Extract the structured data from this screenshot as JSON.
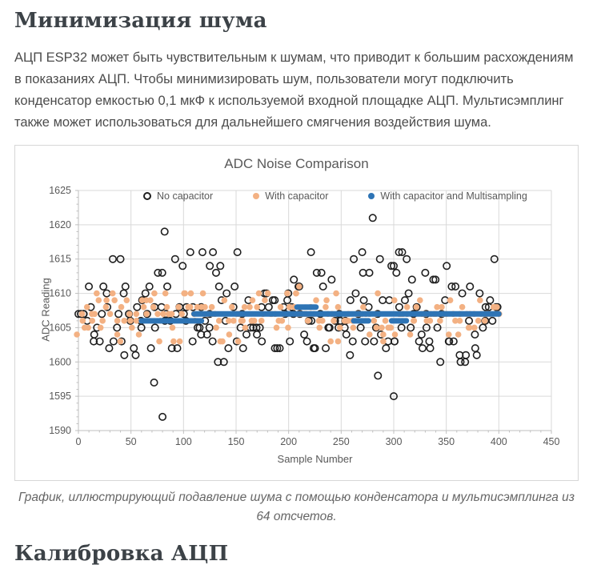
{
  "headings": {
    "noise_minimization": "Минимизация шума",
    "adc_calibration": "Калибровка АЦП"
  },
  "paragraph": "АЦП ESP32 может быть чувствительным к шумам, что приводит к большим расхождениям в показаниях АЦП. Чтобы минимизировать шум, пользователи могут подключить конденсатор емкостью 0,1 мкФ к используемой входной площадке АЦП. Мультисэмплинг также может использоваться для дальнейшего смягчения воздействия шума.",
  "caption": "График, иллюстрирующий подавление шума с помощью конденсатора и мультисэмплинга из 64 отсчетов.",
  "colors": {
    "heading": "#3c4247",
    "body_text": "#4c4c4c",
    "chart_text": "#595959",
    "grid": "#d9d9d9",
    "axis": "#bfbfbf",
    "series_no_capacitor": "#1f1f1f",
    "series_with_capacitor": "#f3b183",
    "series_multisampling": "#2e74b5"
  },
  "chart_data": {
    "type": "scatter",
    "title": "ADC Noise Comparison",
    "xlabel": "Sample Number",
    "ylabel": "ADC Reading",
    "xlim": [
      0,
      450
    ],
    "ylim": [
      1590,
      1625
    ],
    "xticks": [
      0,
      50,
      100,
      150,
      200,
      250,
      300,
      350,
      400,
      450
    ],
    "yticks": [
      1590,
      1595,
      1600,
      1605,
      1610,
      1615,
      1620,
      1625
    ],
    "x_minor_step": 10,
    "y_minor_step": 1,
    "grid": true,
    "legend_position": "top-inside",
    "series": [
      {
        "name": "No capacitor",
        "marker": "open-circle",
        "color": "#1f1f1f",
        "x_range": [
          0,
          400
        ],
        "x_step": 2,
        "seed": 11,
        "value_weights": {
          "1600": 2,
          "1601": 3,
          "1602": 8,
          "1603": 10,
          "1604": 8,
          "1605": 12,
          "1606": 12,
          "1607": 10,
          "1608": 8,
          "1609": 8,
          "1610": 8,
          "1611": 6,
          "1612": 3,
          "1613": 3,
          "1614": 2,
          "1615": 2,
          "1616": 2
        },
        "outliers": [
          [
            72,
            1597
          ],
          [
            80,
            1592
          ],
          [
            82,
            1619
          ],
          [
            280,
            1621
          ],
          [
            285,
            1598
          ],
          [
            300,
            1595
          ],
          [
            40,
            1615
          ],
          [
            92,
            1615
          ],
          [
            118,
            1616
          ],
          [
            128,
            1616
          ],
          [
            125,
            1614
          ],
          [
            135,
            1614
          ],
          [
            262,
            1615
          ],
          [
            270,
            1616
          ],
          [
            300,
            1614
          ],
          [
            305,
            1616
          ],
          [
            308,
            1616
          ],
          [
            330,
            1613
          ],
          [
            205,
            1612
          ]
        ]
      },
      {
        "name": "With capacitor",
        "marker": "filled-circle",
        "color": "#f3b183",
        "x_range": [
          0,
          400
        ],
        "x_step": 2,
        "seed": 7,
        "value_weights": {
          "1603": 3,
          "1604": 5,
          "1605": 18,
          "1606": 22,
          "1607": 24,
          "1608": 14,
          "1609": 10,
          "1610": 4
        },
        "outliers": [
          [
            210,
            1611
          ],
          [
            152,
            1603
          ],
          [
            240,
            1603
          ],
          [
            290,
            1603
          ]
        ]
      },
      {
        "name": "With capacitor and Multisampling",
        "marker": "filled-circle",
        "color": "#2e74b5",
        "x_step": 1,
        "segments": [
          {
            "x0": 60,
            "x1": 117,
            "y": 1606
          },
          {
            "x0": 110,
            "x1": 400,
            "y": 1607
          },
          {
            "x0": 208,
            "x1": 226,
            "y": 1608
          },
          {
            "x0": 262,
            "x1": 276,
            "y": 1606
          },
          {
            "x0": 298,
            "x1": 312,
            "y": 1606
          }
        ]
      }
    ]
  }
}
